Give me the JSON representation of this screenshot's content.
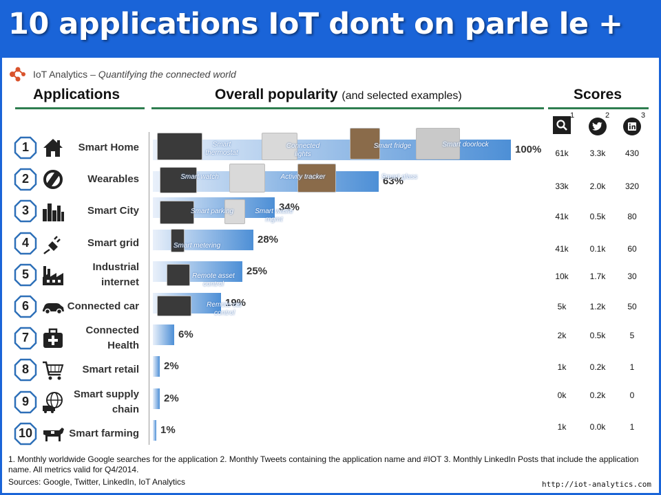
{
  "slide_title": "10 applications IoT dont on parle le +",
  "brand": {
    "name": "IoT Analytics",
    "tagline": "– Quantifying the connected world"
  },
  "headers": {
    "applications": "Applications",
    "popularity": "Overall popularity",
    "popularity_sub": "(and selected examples)",
    "scores": "Scores"
  },
  "score_columns": [
    {
      "icon": "google-search-icon",
      "sup": "1"
    },
    {
      "icon": "twitter-icon",
      "sup": "2"
    },
    {
      "icon": "linkedin-icon",
      "sup": "3"
    }
  ],
  "colors": {
    "banner": "#1a64d8",
    "rule": "#2e7d4f",
    "bar_start": "#e9f0fa",
    "bar_end": "#4d8fd6"
  },
  "chart_data": {
    "type": "bar",
    "orientation": "horizontal",
    "title": "Overall popularity",
    "subtitle": "(and selected examples)",
    "categories": [
      "Smart Home",
      "Wearables",
      "Smart City",
      "Smart grid",
      "Industrial internet",
      "Connected car",
      "Connected Health",
      "Smart retail",
      "Smart supply chain",
      "Smart farming"
    ],
    "values": [
      100,
      63,
      34,
      28,
      25,
      19,
      6,
      2,
      2,
      1
    ],
    "value_labels": [
      "100%",
      "63%",
      "34%",
      "28%",
      "25%",
      "19%",
      "6%",
      "2%",
      "2%",
      "1%"
    ],
    "ylim": [
      0,
      100
    ],
    "grid": false
  },
  "rows": [
    {
      "rank": "1",
      "label": "Smart Home",
      "icon": "house-icon",
      "pct": "100%",
      "google": "61k",
      "twitter": "3.3k",
      "linkedin": "430",
      "examples": [
        "Smart thermostat",
        "Connected lights",
        "Smart fridge",
        "Smart doorlock"
      ]
    },
    {
      "rank": "2",
      "label": "Wearables",
      "icon": "wearable-icon",
      "pct": "63%",
      "google": "33k",
      "twitter": "2.0k",
      "linkedin": "320",
      "examples": [
        "Smart watch",
        "Activity tracker",
        "Smart glass"
      ]
    },
    {
      "rank": "3",
      "label": "Smart City",
      "icon": "city-icon",
      "pct": "34%",
      "google": "41k",
      "twitter": "0.5k",
      "linkedin": "80",
      "examples": [
        "Smart parking",
        "Smart waste mgmt"
      ]
    },
    {
      "rank": "4",
      "label": "Smart grid",
      "icon": "plug-icon",
      "pct": "28%",
      "google": "41k",
      "twitter": "0.1k",
      "linkedin": "60",
      "examples": [
        "Smart metering"
      ]
    },
    {
      "rank": "5",
      "label": "Industrial internet",
      "icon": "factory-icon",
      "pct": "25%",
      "google": "10k",
      "twitter": "1.7k",
      "linkedin": "30",
      "examples": [
        "Remote asset control"
      ]
    },
    {
      "rank": "6",
      "label": "Connected car",
      "icon": "car-icon",
      "pct": "19%",
      "google": "5k",
      "twitter": "1.2k",
      "linkedin": "50",
      "examples": [
        "Remote car control"
      ]
    },
    {
      "rank": "7",
      "label": "Connected Health",
      "icon": "medkit-icon",
      "pct": "6%",
      "google": "2k",
      "twitter": "0.5k",
      "linkedin": "5",
      "examples": []
    },
    {
      "rank": "8",
      "label": "Smart retail",
      "icon": "cart-icon",
      "pct": "2%",
      "google": "1k",
      "twitter": "0.2k",
      "linkedin": "1",
      "examples": []
    },
    {
      "rank": "9",
      "label": "Smart supply chain",
      "icon": "globe-truck-icon",
      "pct": "2%",
      "google": "0k",
      "twitter": "0.2k",
      "linkedin": "0",
      "examples": []
    },
    {
      "rank": "10",
      "label": "Smart farming",
      "icon": "cow-icon",
      "pct": "1%",
      "google": "1k",
      "twitter": "0.0k",
      "linkedin": "1",
      "examples": []
    }
  ],
  "footnote": "1. Monthly worldwide Google searches for the application  2. Monthly Tweets containing the application name and #IOT  3. Monthly LinkedIn Posts that include the application name.  All metrics valid for Q4/2014.",
  "sources": "Sources: Google, Twitter, LinkedIn, IoT Analytics",
  "url": "http://iot-analytics.com"
}
